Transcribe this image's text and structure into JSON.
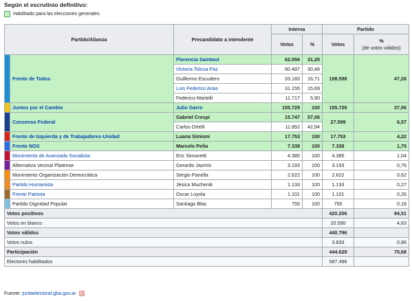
{
  "heading": "Según el escrutinio definitivo:",
  "legend_label": "Habilitado para las elecciones generales",
  "headers": {
    "party": "Partido/Alianza",
    "candidate": "Precandidato a intendente",
    "interna": "Interna",
    "partido": "Partido",
    "votos": "Votos",
    "pct": "%",
    "pct_valid_1": "%",
    "pct_valid_2": "(de votos válidos)"
  },
  "parties": [
    {
      "name": "Frente de Todos",
      "color": "#1e90d6",
      "qualified": true,
      "votos": "198.598",
      "pct": "47,26",
      "candidates": [
        {
          "name": "Florencia Saintout",
          "votos": "62.056",
          "pct": "31,25",
          "winner": true,
          "link": true
        },
        {
          "name": "Victoria Tolosa Paz",
          "votos": "60.487",
          "pct": "30,46",
          "winner": false,
          "link": true
        },
        {
          "name": "Guillermo Escudero",
          "votos": "33.183",
          "pct": "16,71",
          "winner": false,
          "link": false
        },
        {
          "name": "Luis Federico Arias",
          "votos": "31.155",
          "pct": "15,69",
          "winner": false,
          "link": true
        },
        {
          "name": "Federico Martelli",
          "votos": "11.717",
          "pct": "5,90",
          "winner": false,
          "link": false
        }
      ]
    },
    {
      "name": "Juntos por el Cambio",
      "color": "#f5c518",
      "qualified": true,
      "votos": "155.729",
      "pct": "37,06",
      "candidates": [
        {
          "name": "Julio Garro",
          "votos": "155.729",
          "pct": "100",
          "winner": true,
          "link": true
        }
      ]
    },
    {
      "name": "Consenso Federal",
      "color": "#1b3f8f",
      "qualified": true,
      "votos": "27.599",
      "pct": "6,57",
      "candidates": [
        {
          "name": "Gabriel Crespi",
          "votos": "15.747",
          "pct": "57,06",
          "winner": true,
          "link": false
        },
        {
          "name": "Carlos Ortelli",
          "votos": "11.852",
          "pct": "42,94",
          "winner": false,
          "link": false
        }
      ]
    },
    {
      "name": "Frente de Izquierda y de Trabajadores-Unidad",
      "color": "#e0231c",
      "qualified": true,
      "votos": "17.753",
      "pct": "4,22",
      "candidates": [
        {
          "name": "Luana Simioni",
          "votos": "17.753",
          "pct": "100",
          "winner": true,
          "link": false
        }
      ]
    },
    {
      "name": "Frente NOS",
      "color": "#2a6ee8",
      "qualified": true,
      "votos": "7.338",
      "pct": "1,75",
      "candidates": [
        {
          "name": "Marcelo Peña",
          "votos": "7.338",
          "pct": "100",
          "winner": true,
          "link": false
        }
      ]
    },
    {
      "name": "Movimiento de Avanzada Socialista",
      "color": "#c8102e",
      "qualified": false,
      "link": true,
      "votos": "4.385",
      "pct": "1,04",
      "candidates": [
        {
          "name": "Eric Simonetti",
          "votos": "4.385",
          "pct": "100",
          "winner": false,
          "link": false
        }
      ]
    },
    {
      "name": "Alternativa Vecinal Platense",
      "color": "#7b1fa2",
      "qualified": false,
      "link": false,
      "votos": "3.193",
      "pct": "0,76",
      "candidates": [
        {
          "name": "Gerardo Jazmín",
          "votos": "3.193",
          "pct": "100",
          "winner": false,
          "link": false
        }
      ]
    },
    {
      "name": "Movimiento Organización Democrática",
      "color": "#ff8c00",
      "qualified": false,
      "link": false,
      "votos": "2.622",
      "pct": "0,62",
      "candidates": [
        {
          "name": "Sergio Panella",
          "votos": "2.622",
          "pct": "100",
          "winner": false,
          "link": false
        }
      ]
    },
    {
      "name": "Partido Humanista",
      "color": "#f08a1c",
      "qualified": false,
      "link": true,
      "votos": "1.133",
      "pct": "0,27",
      "candidates": [
        {
          "name": "Jésica Muchenik",
          "votos": "1.133",
          "pct": "100",
          "winner": false,
          "link": false
        }
      ]
    },
    {
      "name": "Frente Patriota",
      "color": "#a0672b",
      "qualified": false,
      "link": true,
      "votos": "1.101",
      "pct": "0,26",
      "candidates": [
        {
          "name": "Oscar Loyola",
          "votos": "1.101",
          "pct": "100",
          "winner": false,
          "link": false
        }
      ]
    },
    {
      "name": "Partido Dignidad Popular",
      "color": "#7fc1e0",
      "qualified": false,
      "link": false,
      "votos": "755",
      "pct": "0,18",
      "candidates": [
        {
          "name": "Santiago Blas",
          "votos": "755",
          "pct": "100",
          "winner": false,
          "link": false
        }
      ]
    }
  ],
  "summary": [
    {
      "label": "Votos positivos",
      "votos": "420.206",
      "pct": "94,51",
      "bold": true
    },
    {
      "label": "Votos en blanco",
      "votos": "20.590",
      "pct": "4,63",
      "bold": false
    },
    {
      "label": "Votos válidos",
      "votos": "440.796",
      "pct": "",
      "bold": true
    },
    {
      "label": "Votos nulos",
      "votos": "3.833",
      "pct": "0,86",
      "bold": false
    },
    {
      "label": "Participación",
      "votos": "444.629",
      "pct": "75,68",
      "bold": true
    },
    {
      "label": "Electores habilitados",
      "votos": "587.496",
      "pct": "",
      "bold": false
    }
  ],
  "source": {
    "prefix": "Fuente:",
    "link": "juntaelectoral.gba.gov.ar"
  },
  "colors": {
    "qualified_bg": "#c5f2c5",
    "header_bg": "#eaecf0",
    "link": "#0645ad"
  }
}
